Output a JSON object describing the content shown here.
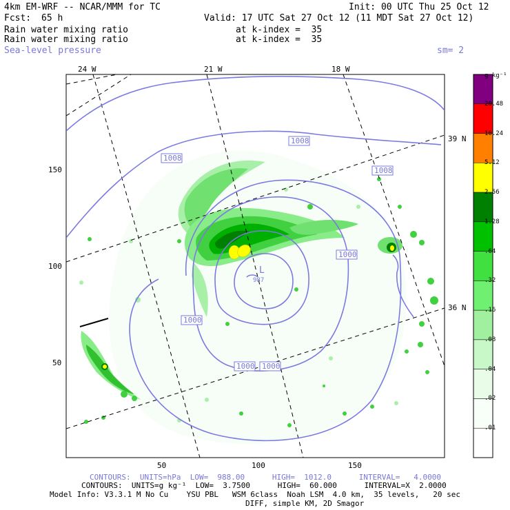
{
  "header": {
    "model": "4km EM-WRF -- NCAR/MMM for TC",
    "init": "Init: 00 UTC Thu 25 Oct 12",
    "fcst_label": "Fcst:",
    "fcst_value": "65 h",
    "valid": "Valid: 17 UTC Sat 27 Oct 12 (11 MDT Sat 27 Oct 12)",
    "field1": "Rain water mixing ratio",
    "field1_level": "at k-index =  35",
    "field2": "Rain water mixing ratio",
    "field2_level": "at k-index =  35",
    "field3": "Sea-level pressure",
    "field3_sm": "sm= 2"
  },
  "map": {
    "lon_labels": [
      "24 W",
      "21 W",
      "18 W"
    ],
    "lat_labels": [
      "39 N",
      "36 N"
    ],
    "y_ticks": [
      "150",
      "100",
      "50"
    ],
    "x_ticks": [
      "50",
      "100",
      "150"
    ],
    "contour_labels": [
      "1008",
      "1008",
      "1008",
      "1000",
      "1000",
      "1000",
      "1000"
    ],
    "low_symbol": "L",
    "low_value": "987"
  },
  "legend": {
    "unit": "g kg⁻¹",
    "levels": [
      "20.48",
      "10.24",
      "5.12",
      "2.56",
      "1.28",
      ".64",
      ".32",
      ".16",
      ".08",
      ".04",
      ".02",
      ".01"
    ],
    "colors": [
      "#800080",
      "#ff0000",
      "#ff8000",
      "#ffff00",
      "#008000",
      "#00c000",
      "#40e040",
      "#70f070",
      "#a0f0a0",
      "#c8f8c8",
      "#e8fce8",
      "#f8fff8",
      "#ffffff"
    ]
  },
  "footer": {
    "contours1": "CONTOURS:  UNITS=hPa  LOW=  988.00      HIGH=  1012.0      INTERVAL=   4.0000",
    "contours2": "CONTOURS:  UNITS=g kg⁻¹  LOW=  3.7500      HIGH=  60.000      INTERVAL=X  2.0000",
    "model_info": "Model Info: V3.3.1 M No Cu    YSU PBL   WSM 6class  Noah LSM  4.0 km,  35 levels,   20 sec",
    "diff": "DIFF, simple KM, 2D Smagor"
  }
}
